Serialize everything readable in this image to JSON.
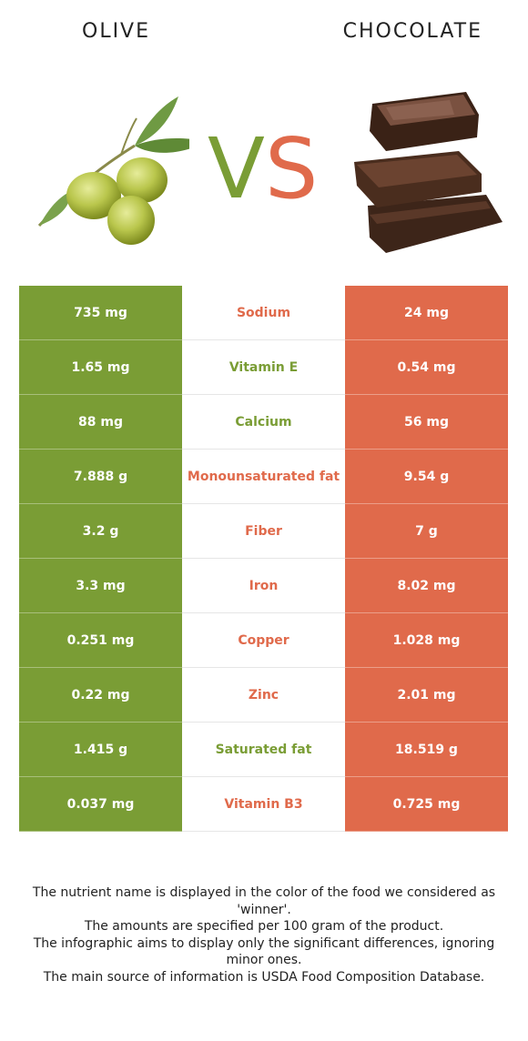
{
  "header": {
    "left_title": "OLIVE",
    "right_title": "CHOCOLATE",
    "vs_v": "V",
    "vs_s": "S"
  },
  "colors": {
    "olive": "#7a9d35",
    "chocolate": "#e06a4b"
  },
  "images": {
    "left": "olive-branch-illustration",
    "right": "chocolate-pieces-illustration"
  },
  "rows": [
    {
      "left": "735 mg",
      "nutrient": "Sodium",
      "right": "24 mg",
      "winner": "chocolate"
    },
    {
      "left": "1.65 mg",
      "nutrient": "Vitamin E",
      "right": "0.54 mg",
      "winner": "olive"
    },
    {
      "left": "88 mg",
      "nutrient": "Calcium",
      "right": "56 mg",
      "winner": "olive"
    },
    {
      "left": "7.888 g",
      "nutrient": "Monounsaturated fat",
      "right": "9.54 g",
      "winner": "chocolate"
    },
    {
      "left": "3.2 g",
      "nutrient": "Fiber",
      "right": "7 g",
      "winner": "chocolate"
    },
    {
      "left": "3.3 mg",
      "nutrient": "Iron",
      "right": "8.02 mg",
      "winner": "chocolate"
    },
    {
      "left": "0.251 mg",
      "nutrient": "Copper",
      "right": "1.028 mg",
      "winner": "chocolate"
    },
    {
      "left": "0.22 mg",
      "nutrient": "Zinc",
      "right": "2.01 mg",
      "winner": "chocolate"
    },
    {
      "left": "1.415 g",
      "nutrient": "Saturated fat",
      "right": "18.519 g",
      "winner": "olive"
    },
    {
      "left": "0.037 mg",
      "nutrient": "Vitamin B3",
      "right": "0.725 mg",
      "winner": "chocolate"
    }
  ],
  "notes": [
    "The nutrient name is displayed in the color of the food we considered as 'winner'.",
    "The amounts are specified per 100 gram of the product.",
    "The infographic aims to display only the significant differences, ignoring minor ones.",
    "The main source of information is USDA Food Composition Database."
  ]
}
